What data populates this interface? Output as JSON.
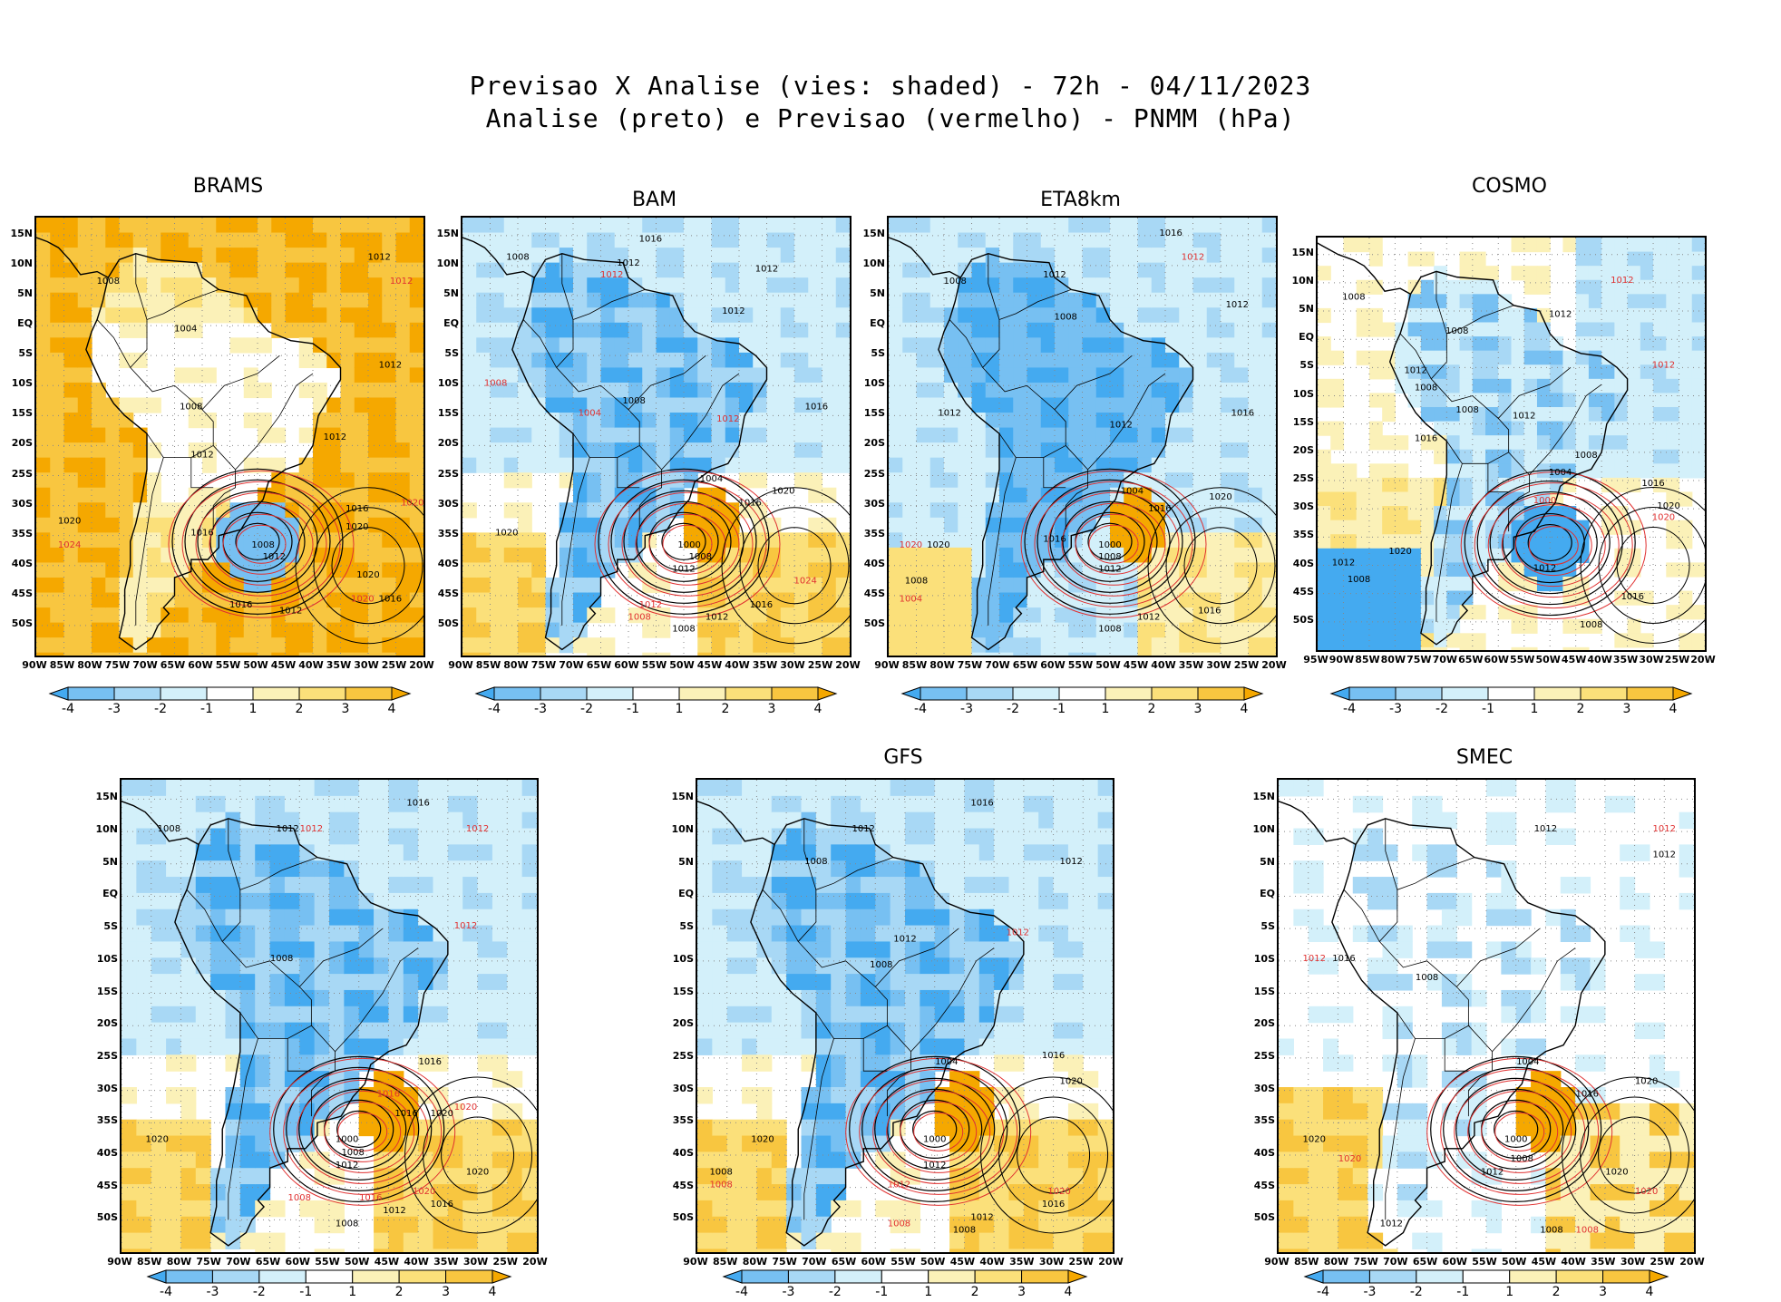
{
  "title": {
    "line1": "Previsao X Analise (vies: shaded) - 72h - 04/11/2023",
    "line2": "Analise (preto) e Previsao (vermelho) - PNMM (hPa)"
  },
  "colors": {
    "neg4": "#44aaf0",
    "neg3": "#77c0f2",
    "neg2": "#a8d8f5",
    "neg1": "#d3f0fa",
    "zero": "#ffffff",
    "pos1": "#fbf1b8",
    "pos2": "#fbe07a",
    "pos3": "#f8c640",
    "pos4": "#f5a800",
    "analysis_contour": "#000000",
    "forecast_contour": "#e03030"
  },
  "colorbar": {
    "labels": [
      "-4",
      "-3",
      "-2",
      "-1",
      "1",
      "2",
      "3",
      "4"
    ]
  },
  "lat_labels": [
    "15N",
    "10N",
    "5N",
    "EQ",
    "5S",
    "10S",
    "15S",
    "20S",
    "25S",
    "30S",
    "35S",
    "40S",
    "45S",
    "50S"
  ],
  "lon_labels": [
    "90W",
    "85W",
    "80W",
    "75W",
    "70W",
    "65W",
    "60W",
    "55W",
    "50W",
    "45W",
    "40W",
    "35W",
    "30W",
    "25W",
    "20W"
  ],
  "lon_labels_cosmo": [
    "95W",
    "90W",
    "85W",
    "80W",
    "75W",
    "70W",
    "65W",
    "60W",
    "55W",
    "50W",
    "45W",
    "40W",
    "35W",
    "30W",
    "25W",
    "20W"
  ],
  "panels": [
    {
      "name": "BRAMS",
      "bias": "warm",
      "contours": [
        {
          "text": "1012",
          "color": "black",
          "lon": -28,
          "lat": 11
        },
        {
          "text": "1012",
          "color": "red",
          "lon": -24,
          "lat": 7
        },
        {
          "text": "1008",
          "color": "black",
          "lon": -77,
          "lat": 7
        },
        {
          "text": "1004",
          "color": "black",
          "lon": -63,
          "lat": -1
        },
        {
          "text": "1012",
          "color": "black",
          "lon": -26,
          "lat": -7
        },
        {
          "text": "1008",
          "color": "black",
          "lon": -62,
          "lat": -14
        },
        {
          "text": "1012",
          "color": "black",
          "lon": -60,
          "lat": -22
        },
        {
          "text": "1012",
          "color": "black",
          "lon": -36,
          "lat": -19
        },
        {
          "text": "1016",
          "color": "black",
          "lon": -32,
          "lat": -31
        },
        {
          "text": "1020",
          "color": "red",
          "lon": -22,
          "lat": -30
        },
        {
          "text": "1020",
          "color": "black",
          "lon": -84,
          "lat": -33
        },
        {
          "text": "1024",
          "color": "red",
          "lon": -84,
          "lat": -37
        },
        {
          "text": "1020",
          "color": "black",
          "lon": -32,
          "lat": -34
        },
        {
          "text": "1008",
          "color": "black",
          "lon": -49,
          "lat": -37
        },
        {
          "text": "1012",
          "color": "black",
          "lon": -47,
          "lat": -39
        },
        {
          "text": "1016",
          "color": "black",
          "lon": -60,
          "lat": -35
        },
        {
          "text": "1020",
          "color": "black",
          "lon": -30,
          "lat": -42
        },
        {
          "text": "1020",
          "color": "red",
          "lon": -31,
          "lat": -46
        },
        {
          "text": "1016",
          "color": "black",
          "lon": -26,
          "lat": -46
        },
        {
          "text": "1016",
          "color": "black",
          "lon": -53,
          "lat": -47
        },
        {
          "text": "1012",
          "color": "black",
          "lon": -44,
          "lat": -48
        }
      ]
    },
    {
      "name": "BAM",
      "bias": "cold-land",
      "contours": [
        {
          "text": "1016",
          "color": "black",
          "lon": -56,
          "lat": 14
        },
        {
          "text": "1012",
          "color": "black",
          "lon": -60,
          "lat": 10
        },
        {
          "text": "1012",
          "color": "red",
          "lon": -63,
          "lat": 8
        },
        {
          "text": "1012",
          "color": "black",
          "lon": -35,
          "lat": 9
        },
        {
          "text": "1012",
          "color": "black",
          "lon": -41,
          "lat": 2
        },
        {
          "text": "1008",
          "color": "black",
          "lon": -80,
          "lat": 11
        },
        {
          "text": "1008",
          "color": "black",
          "lon": -59,
          "lat": -13
        },
        {
          "text": "1008",
          "color": "red",
          "lon": -84,
          "lat": -10
        },
        {
          "text": "1004",
          "color": "red",
          "lon": -67,
          "lat": -15
        },
        {
          "text": "1016",
          "color": "black",
          "lon": -26,
          "lat": -14
        },
        {
          "text": "1012",
          "color": "red",
          "lon": -42,
          "lat": -16
        },
        {
          "text": "1004",
          "color": "black",
          "lon": -45,
          "lat": -26
        },
        {
          "text": "1016",
          "color": "black",
          "lon": -38,
          "lat": -30
        },
        {
          "text": "1020",
          "color": "black",
          "lon": -32,
          "lat": -28
        },
        {
          "text": "1020",
          "color": "black",
          "lon": -82,
          "lat": -35
        },
        {
          "text": "1000",
          "color": "black",
          "lon": -49,
          "lat": -37
        },
        {
          "text": "1008",
          "color": "black",
          "lon": -47,
          "lat": -39
        },
        {
          "text": "1012",
          "color": "black",
          "lon": -50,
          "lat": -41
        },
        {
          "text": "1024",
          "color": "red",
          "lon": -28,
          "lat": -43
        },
        {
          "text": "1016",
          "color": "black",
          "lon": -36,
          "lat": -47
        },
        {
          "text": "1012",
          "color": "red",
          "lon": -56,
          "lat": -47
        },
        {
          "text": "1008",
          "color": "red",
          "lon": -58,
          "lat": -49
        },
        {
          "text": "1012",
          "color": "black",
          "lon": -44,
          "lat": -49
        },
        {
          "text": "1008",
          "color": "black",
          "lon": -50,
          "lat": -51
        }
      ]
    },
    {
      "name": "ETA8km",
      "bias": "cold",
      "contours": [
        {
          "text": "1016",
          "color": "black",
          "lon": -39,
          "lat": 15
        },
        {
          "text": "1012",
          "color": "red",
          "lon": -35,
          "lat": 11
        },
        {
          "text": "1012",
          "color": "black",
          "lon": -60,
          "lat": 8
        },
        {
          "text": "1012",
          "color": "black",
          "lon": -27,
          "lat": 3
        },
        {
          "text": "1008",
          "color": "black",
          "lon": -78,
          "lat": 7
        },
        {
          "text": "1008",
          "color": "black",
          "lon": -58,
          "lat": 1
        },
        {
          "text": "1012",
          "color": "black",
          "lon": -79,
          "lat": -15
        },
        {
          "text": "1016",
          "color": "black",
          "lon": -26,
          "lat": -15
        },
        {
          "text": "1012",
          "color": "black",
          "lon": -48,
          "lat": -17
        },
        {
          "text": "1004",
          "color": "black",
          "lon": -46,
          "lat": -28
        },
        {
          "text": "1016",
          "color": "black",
          "lon": -41,
          "lat": -31
        },
        {
          "text": "1020",
          "color": "black",
          "lon": -30,
          "lat": -29
        },
        {
          "text": "1020",
          "color": "red",
          "lon": -86,
          "lat": -37
        },
        {
          "text": "1020",
          "color": "black",
          "lon": -81,
          "lat": -37
        },
        {
          "text": "1000",
          "color": "black",
          "lon": -50,
          "lat": -37
        },
        {
          "text": "1008",
          "color": "black",
          "lon": -50,
          "lat": -39
        },
        {
          "text": "1012",
          "color": "black",
          "lon": -50,
          "lat": -41
        },
        {
          "text": "1016",
          "color": "black",
          "lon": -60,
          "lat": -36
        },
        {
          "text": "1008",
          "color": "black",
          "lon": -85,
          "lat": -43
        },
        {
          "text": "1004",
          "color": "red",
          "lon": -86,
          "lat": -46
        },
        {
          "text": "1016",
          "color": "black",
          "lon": -32,
          "lat": -48
        },
        {
          "text": "1012",
          "color": "black",
          "lon": -43,
          "lat": -49
        },
        {
          "text": "1008",
          "color": "black",
          "lon": -50,
          "lat": -51
        }
      ]
    },
    {
      "name": "COSMO",
      "bias": "mixed",
      "contours": [
        {
          "text": "1012",
          "color": "red",
          "lon": -36,
          "lat": 10
        },
        {
          "text": "1008",
          "color": "black",
          "lon": -88,
          "lat": 7
        },
        {
          "text": "1012",
          "color": "black",
          "lon": -48,
          "lat": 4
        },
        {
          "text": "1008",
          "color": "black",
          "lon": -68,
          "lat": 1
        },
        {
          "text": "1012",
          "color": "red",
          "lon": -28,
          "lat": -5
        },
        {
          "text": "1012",
          "color": "black",
          "lon": -76,
          "lat": -6
        },
        {
          "text": "1008",
          "color": "black",
          "lon": -74,
          "lat": -9
        },
        {
          "text": "1008",
          "color": "black",
          "lon": -66,
          "lat": -13
        },
        {
          "text": "1012",
          "color": "black",
          "lon": -55,
          "lat": -14
        },
        {
          "text": "1016",
          "color": "black",
          "lon": -74,
          "lat": -18
        },
        {
          "text": "1008",
          "color": "black",
          "lon": -43,
          "lat": -21
        },
        {
          "text": "1004",
          "color": "black",
          "lon": -48,
          "lat": -24
        },
        {
          "text": "1000",
          "color": "red",
          "lon": -51,
          "lat": -29
        },
        {
          "text": "1016",
          "color": "black",
          "lon": -30,
          "lat": -26
        },
        {
          "text": "1020",
          "color": "black",
          "lon": -27,
          "lat": -30
        },
        {
          "text": "1020",
          "color": "red",
          "lon": -28,
          "lat": -32
        },
        {
          "text": "1020",
          "color": "black",
          "lon": -79,
          "lat": -38
        },
        {
          "text": "1012",
          "color": "black",
          "lon": -90,
          "lat": -40
        },
        {
          "text": "1008",
          "color": "black",
          "lon": -87,
          "lat": -43
        },
        {
          "text": "1012",
          "color": "black",
          "lon": -51,
          "lat": -41
        },
        {
          "text": "1016",
          "color": "black",
          "lon": -34,
          "lat": -46
        },
        {
          "text": "1008",
          "color": "black",
          "lon": -42,
          "lat": -51
        }
      ]
    },
    {
      "name": "",
      "bias": "cold-land",
      "contours": [
        {
          "text": "1016",
          "color": "black",
          "lon": -40,
          "lat": 14
        },
        {
          "text": "1012",
          "color": "black",
          "lon": -62,
          "lat": 10
        },
        {
          "text": "1012",
          "color": "red",
          "lon": -58,
          "lat": 10
        },
        {
          "text": "1012",
          "color": "red",
          "lon": -30,
          "lat": 10
        },
        {
          "text": "1008",
          "color": "black",
          "lon": -82,
          "lat": 10
        },
        {
          "text": "1012",
          "color": "red",
          "lon": -32,
          "lat": -5
        },
        {
          "text": "1008",
          "color": "black",
          "lon": -63,
          "lat": -10
        },
        {
          "text": "1016",
          "color": "black",
          "lon": -38,
          "lat": -26
        },
        {
          "text": "1016",
          "color": "red",
          "lon": -45,
          "lat": -31
        },
        {
          "text": "1020",
          "color": "red",
          "lon": -32,
          "lat": -33
        },
        {
          "text": "1016",
          "color": "black",
          "lon": -42,
          "lat": -34
        },
        {
          "text": "1020",
          "color": "black",
          "lon": -36,
          "lat": -34
        },
        {
          "text": "1020",
          "color": "black",
          "lon": -84,
          "lat": -38
        },
        {
          "text": "1000",
          "color": "black",
          "lon": -52,
          "lat": -38
        },
        {
          "text": "1008",
          "color": "black",
          "lon": -51,
          "lat": -40
        },
        {
          "text": "1012",
          "color": "black",
          "lon": -52,
          "lat": -42
        },
        {
          "text": "1020",
          "color": "black",
          "lon": -30,
          "lat": -43
        },
        {
          "text": "1020",
          "color": "red",
          "lon": -39,
          "lat": -46
        },
        {
          "text": "1016",
          "color": "black",
          "lon": -36,
          "lat": -48
        },
        {
          "text": "1016",
          "color": "red",
          "lon": -48,
          "lat": -47
        },
        {
          "text": "1012",
          "color": "black",
          "lon": -44,
          "lat": -49
        },
        {
          "text": "1008",
          "color": "red",
          "lon": -60,
          "lat": -47
        },
        {
          "text": "1008",
          "color": "black",
          "lon": -52,
          "lat": -51
        }
      ]
    },
    {
      "name": "GFS",
      "bias": "cold-land",
      "contours": [
        {
          "text": "1016",
          "color": "black",
          "lon": -42,
          "lat": 14
        },
        {
          "text": "1012",
          "color": "black",
          "lon": -62,
          "lat": 10
        },
        {
          "text": "1008",
          "color": "black",
          "lon": -70,
          "lat": 5
        },
        {
          "text": "1012",
          "color": "black",
          "lon": -27,
          "lat": 5
        },
        {
          "text": "1012",
          "color": "black",
          "lon": -55,
          "lat": -7
        },
        {
          "text": "1008",
          "color": "black",
          "lon": -59,
          "lat": -11
        },
        {
          "text": "1012",
          "color": "red",
          "lon": -36,
          "lat": -6
        },
        {
          "text": "1016",
          "color": "black",
          "lon": -30,
          "lat": -25
        },
        {
          "text": "1004",
          "color": "black",
          "lon": -48,
          "lat": -26
        },
        {
          "text": "1020",
          "color": "black",
          "lon": -27,
          "lat": -29
        },
        {
          "text": "1020",
          "color": "black",
          "lon": -79,
          "lat": -38
        },
        {
          "text": "1008",
          "color": "black",
          "lon": -86,
          "lat": -43
        },
        {
          "text": "1008",
          "color": "red",
          "lon": -86,
          "lat": -45
        },
        {
          "text": "1000",
          "color": "black",
          "lon": -50,
          "lat": -38
        },
        {
          "text": "1012",
          "color": "black",
          "lon": -50,
          "lat": -42
        },
        {
          "text": "1012",
          "color": "red",
          "lon": -56,
          "lat": -45
        },
        {
          "text": "1020",
          "color": "red",
          "lon": -29,
          "lat": -46
        },
        {
          "text": "1016",
          "color": "black",
          "lon": -30,
          "lat": -48
        },
        {
          "text": "1012",
          "color": "black",
          "lon": -42,
          "lat": -50
        },
        {
          "text": "1008",
          "color": "red",
          "lon": -56,
          "lat": -51
        },
        {
          "text": "1008",
          "color": "black",
          "lon": -45,
          "lat": -52
        }
      ]
    },
    {
      "name": "SMEC",
      "bias": "mixed-light",
      "contours": [
        {
          "text": "1012",
          "color": "black",
          "lon": -45,
          "lat": 10
        },
        {
          "text": "1012",
          "color": "red",
          "lon": -25,
          "lat": 10
        },
        {
          "text": "1012",
          "color": "black",
          "lon": -25,
          "lat": 6
        },
        {
          "text": "1012",
          "color": "red",
          "lon": -84,
          "lat": -10
        },
        {
          "text": "1016",
          "color": "black",
          "lon": -79,
          "lat": -10
        },
        {
          "text": "1008",
          "color": "black",
          "lon": -65,
          "lat": -13
        },
        {
          "text": "1004",
          "color": "black",
          "lon": -48,
          "lat": -26
        },
        {
          "text": "1016",
          "color": "black",
          "lon": -38,
          "lat": -31
        },
        {
          "text": "1020",
          "color": "black",
          "lon": -28,
          "lat": -29
        },
        {
          "text": "1020",
          "color": "black",
          "lon": -84,
          "lat": -38
        },
        {
          "text": "1020",
          "color": "red",
          "lon": -78,
          "lat": -41
        },
        {
          "text": "1000",
          "color": "black",
          "lon": -50,
          "lat": -38
        },
        {
          "text": "1008",
          "color": "black",
          "lon": -49,
          "lat": -41
        },
        {
          "text": "1012",
          "color": "black",
          "lon": -54,
          "lat": -43
        },
        {
          "text": "1020",
          "color": "black",
          "lon": -33,
          "lat": -43
        },
        {
          "text": "1020",
          "color": "red",
          "lon": -28,
          "lat": -46
        },
        {
          "text": "1012",
          "color": "black",
          "lon": -71,
          "lat": -51
        },
        {
          "text": "1008",
          "color": "red",
          "lon": -38,
          "lat": -52
        },
        {
          "text": "1008",
          "color": "black",
          "lon": -44,
          "lat": -52
        }
      ]
    }
  ]
}
